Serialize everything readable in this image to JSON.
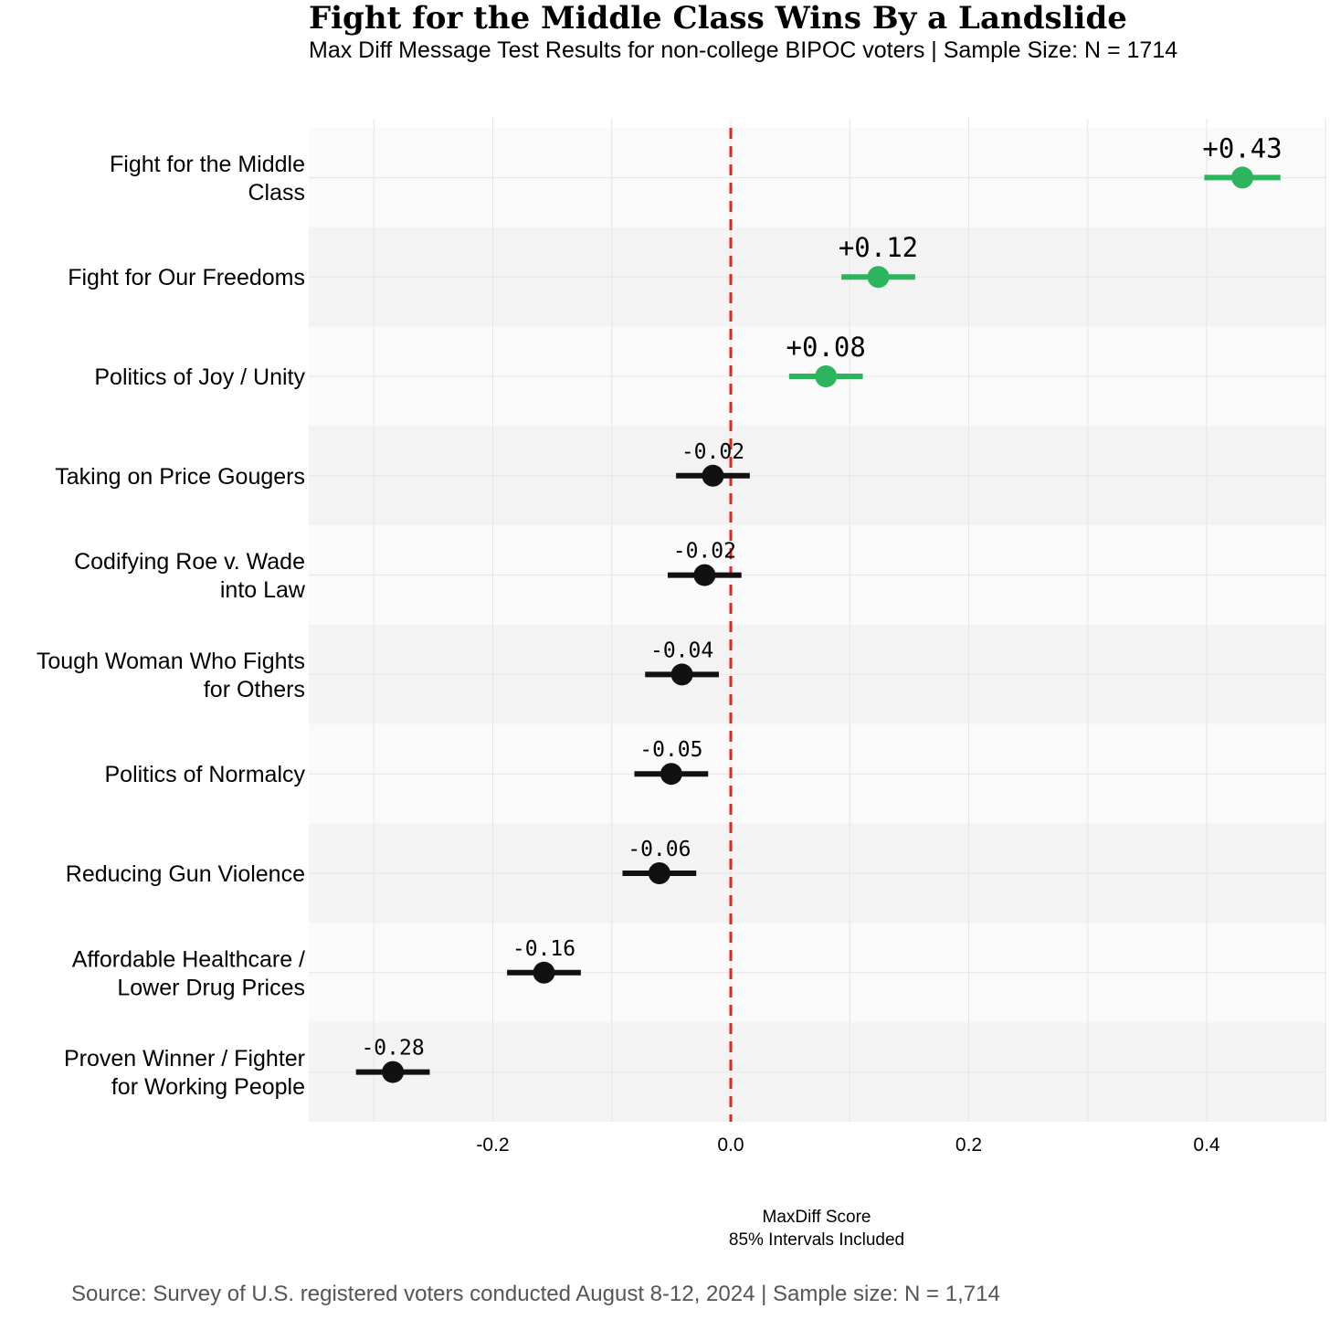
{
  "chart_data": {
    "type": "scatter",
    "title": "Fight for the Middle Class Wins By a Landslide",
    "subtitle": "Max Diff Message Test Results for non-college BIPOC voters | Sample Size: N = 1714",
    "xlabel": [
      "MaxDiff Score",
      "85% Intervals Included"
    ],
    "xlim": [
      -0.356,
      0.5
    ],
    "xticks": [
      -0.2,
      0.0,
      0.2,
      0.4
    ],
    "xtick_labels": [
      "-0.2",
      "0.0",
      "0.2",
      "0.4"
    ],
    "reference_line": 0.0,
    "categories": [
      {
        "label": [
          "Fight for the Middle",
          "Class"
        ],
        "value": 0.43,
        "low": 0.398,
        "high": 0.462,
        "value_label": "+0.43",
        "color": "#2db55d"
      },
      {
        "label": [
          "Fight for Our Freedoms"
        ],
        "value": 0.124,
        "low": 0.093,
        "high": 0.155,
        "value_label": "+0.12",
        "color": "#2db55d"
      },
      {
        "label": [
          "Politics of Joy / Unity"
        ],
        "value": 0.08,
        "low": 0.049,
        "high": 0.111,
        "value_label": "+0.08",
        "color": "#2db55d"
      },
      {
        "label": [
          "Taking on Price Gougers"
        ],
        "value": -0.015,
        "low": -0.046,
        "high": 0.016,
        "value_label": "-0.02",
        "color": "#111111"
      },
      {
        "label": [
          "Codifying Roe v. Wade",
          "into Law"
        ],
        "value": -0.022,
        "low": -0.053,
        "high": 0.009,
        "value_label": "-0.02",
        "color": "#111111"
      },
      {
        "label": [
          "Tough Woman Who Fights",
          "for Others"
        ],
        "value": -0.041,
        "low": -0.072,
        "high": -0.01,
        "value_label": "-0.04",
        "color": "#111111"
      },
      {
        "label": [
          "Politics of Normalcy"
        ],
        "value": -0.05,
        "low": -0.081,
        "high": -0.019,
        "value_label": "-0.05",
        "color": "#111111"
      },
      {
        "label": [
          "Reducing Gun Violence"
        ],
        "value": -0.06,
        "low": -0.091,
        "high": -0.029,
        "value_label": "-0.06",
        "color": "#111111"
      },
      {
        "label": [
          "Affordable Healthcare /",
          "Lower Drug Prices"
        ],
        "value": -0.157,
        "low": -0.188,
        "high": -0.126,
        "value_label": "-0.16",
        "color": "#111111"
      },
      {
        "label": [
          "Proven Winner / Fighter",
          "for Working People"
        ],
        "value": -0.284,
        "low": -0.315,
        "high": -0.253,
        "value_label": "-0.28",
        "color": "#111111"
      }
    ],
    "colors": {
      "positive": "#2db55d",
      "negative": "#111111",
      "reference": "#e8221c"
    }
  },
  "source": "Source: Survey of U.S. registered voters conducted August 8-12, 2024 | Sample size: N = 1,714"
}
